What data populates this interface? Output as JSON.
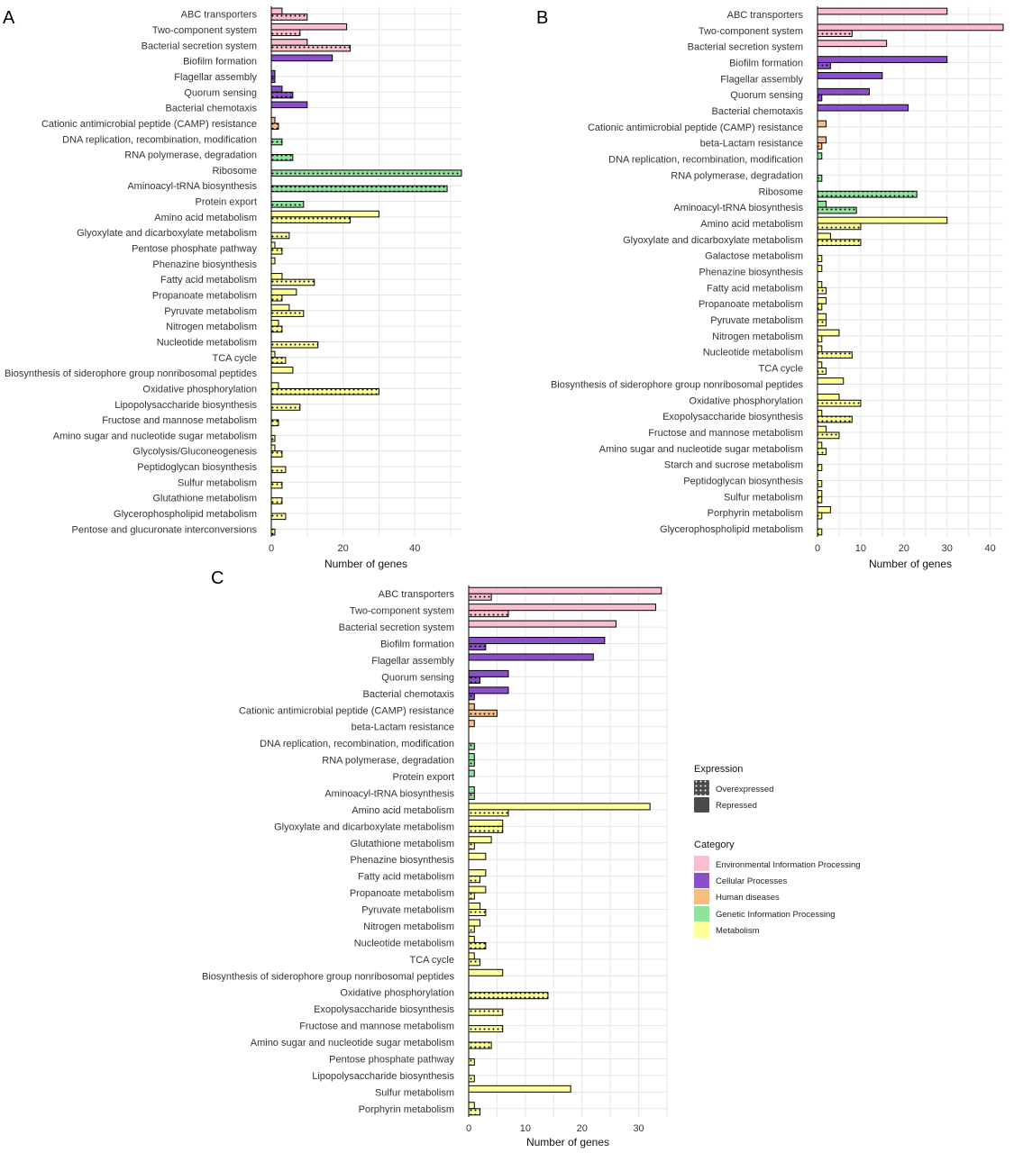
{
  "colors": {
    "Environmental Information Processing": "#f9bfcf",
    "Cellular Processes": "#8b4fc9",
    "Human diseases": "#f7bd7e",
    "Genetic Information Processing": "#8fe39a",
    "Metabolism": "#ffff99"
  },
  "legend": {
    "expression_title": "Expression",
    "expression_items": [
      "Overexpressed",
      "Repressed"
    ],
    "category_title": "Category",
    "category_items": [
      "Environmental Information Processing",
      "Cellular Processes",
      "Human diseases",
      "Genetic Information Processing",
      "Metabolism"
    ]
  },
  "chart_data": [
    {
      "panel": "A",
      "type": "bar",
      "orientation": "horizontal",
      "xlabel": "Number of genes",
      "xlim": [
        0,
        53
      ],
      "xticks": [
        0,
        20,
        40
      ],
      "grid": true,
      "series": [
        {
          "name": "Repressed"
        },
        {
          "name": "Overexpressed"
        }
      ],
      "categories": [
        {
          "name": "ABC transporters",
          "category": "Environmental Information Processing",
          "repressed": 3,
          "overexpressed": 10
        },
        {
          "name": "Two-component system",
          "category": "Environmental Information Processing",
          "repressed": 21,
          "overexpressed": 8
        },
        {
          "name": "Bacterial secretion system",
          "category": "Environmental Information Processing",
          "repressed": 10,
          "overexpressed": 22
        },
        {
          "name": "Biofilm formation",
          "category": "Cellular Processes",
          "repressed": 17,
          "overexpressed": 0
        },
        {
          "name": "Flagellar assembly",
          "category": "Cellular Processes",
          "repressed": 1,
          "overexpressed": 1
        },
        {
          "name": "Quorum sensing",
          "category": "Cellular Processes",
          "repressed": 3,
          "overexpressed": 6
        },
        {
          "name": "Bacterial chemotaxis",
          "category": "Cellular Processes",
          "repressed": 10,
          "overexpressed": 0
        },
        {
          "name": "Cationic antimicrobial peptide (CAMP) resistance",
          "category": "Human diseases",
          "repressed": 1,
          "overexpressed": 2
        },
        {
          "name": "DNA replication, recombination, modification",
          "category": "Genetic Information Processing",
          "repressed": 0,
          "overexpressed": 3
        },
        {
          "name": "RNA polymerase, degradation",
          "category": "Genetic Information Processing",
          "repressed": 0,
          "overexpressed": 6
        },
        {
          "name": "Ribosome",
          "category": "Genetic Information Processing",
          "repressed": 0,
          "overexpressed": 53
        },
        {
          "name": "Aminoacyl-tRNA biosynthesis",
          "category": "Genetic Information Processing",
          "repressed": 0,
          "overexpressed": 49
        },
        {
          "name": "Protein export",
          "category": "Genetic Information Processing",
          "repressed": 0,
          "overexpressed": 9
        },
        {
          "name": "Amino acid metabolism",
          "category": "Metabolism",
          "repressed": 30,
          "overexpressed": 22
        },
        {
          "name": "Glyoxylate and dicarboxylate metabolism",
          "category": "Metabolism",
          "repressed": 0,
          "overexpressed": 5
        },
        {
          "name": "Pentose phosphate pathway",
          "category": "Metabolism",
          "repressed": 1,
          "overexpressed": 3
        },
        {
          "name": "Phenazine biosynthesis",
          "category": "Metabolism",
          "repressed": 1,
          "overexpressed": 0
        },
        {
          "name": "Fatty acid metabolism",
          "category": "Metabolism",
          "repressed": 3,
          "overexpressed": 12
        },
        {
          "name": "Propanoate metabolism",
          "category": "Metabolism",
          "repressed": 7,
          "overexpressed": 3
        },
        {
          "name": "Pyruvate metabolism",
          "category": "Metabolism",
          "repressed": 5,
          "overexpressed": 9
        },
        {
          "name": "Nitrogen metabolism",
          "category": "Metabolism",
          "repressed": 2,
          "overexpressed": 3
        },
        {
          "name": "Nucleotide metabolism",
          "category": "Metabolism",
          "repressed": 0,
          "overexpressed": 13
        },
        {
          "name": "TCA cycle",
          "category": "Metabolism",
          "repressed": 1,
          "overexpressed": 4
        },
        {
          "name": "Biosynthesis of siderophore group nonribosomal peptides",
          "category": "Metabolism",
          "repressed": 6,
          "overexpressed": 0
        },
        {
          "name": "Oxidative phosphorylation",
          "category": "Metabolism",
          "repressed": 2,
          "overexpressed": 30
        },
        {
          "name": "Lipopolysaccharide biosynthesis",
          "category": "Metabolism",
          "repressed": 0,
          "overexpressed": 8
        },
        {
          "name": "Fructose and mannose metabolism",
          "category": "Metabolism",
          "repressed": 0,
          "overexpressed": 2
        },
        {
          "name": "Amino sugar and nucleotide sugar metabolism",
          "category": "Metabolism",
          "repressed": 0,
          "overexpressed": 1
        },
        {
          "name": "Glycolysis/Gluconeogenesis",
          "category": "Metabolism",
          "repressed": 1,
          "overexpressed": 3
        },
        {
          "name": "Peptidoglycan biosynthesis",
          "category": "Metabolism",
          "repressed": 0,
          "overexpressed": 4
        },
        {
          "name": "Sulfur metabolism",
          "category": "Metabolism",
          "repressed": 0,
          "overexpressed": 3
        },
        {
          "name": "Glutathione metabolism",
          "category": "Metabolism",
          "repressed": 0,
          "overexpressed": 3
        },
        {
          "name": "Glycerophospholipid metabolism",
          "category": "Metabolism",
          "repressed": 0,
          "overexpressed": 4
        },
        {
          "name": "Pentose and glucuronate interconversions",
          "category": "Metabolism",
          "repressed": 0,
          "overexpressed": 1
        }
      ]
    },
    {
      "panel": "B",
      "type": "bar",
      "orientation": "horizontal",
      "xlabel": "Number of genes",
      "xlim": [
        0,
        43
      ],
      "xticks": [
        0,
        10,
        20,
        30,
        40
      ],
      "grid": true,
      "series": [
        {
          "name": "Repressed"
        },
        {
          "name": "Overexpressed"
        }
      ],
      "categories": [
        {
          "name": "ABC transporters",
          "category": "Environmental Information Processing",
          "repressed": 30,
          "overexpressed": 0
        },
        {
          "name": "Two-component system",
          "category": "Environmental Information Processing",
          "repressed": 43,
          "overexpressed": 8
        },
        {
          "name": "Bacterial secretion system",
          "category": "Environmental Information Processing",
          "repressed": 16,
          "overexpressed": 0
        },
        {
          "name": "Biofilm formation",
          "category": "Cellular Processes",
          "repressed": 30,
          "overexpressed": 3
        },
        {
          "name": "Flagellar assembly",
          "category": "Cellular Processes",
          "repressed": 15,
          "overexpressed": 0
        },
        {
          "name": "Quorum sensing",
          "category": "Cellular Processes",
          "repressed": 12,
          "overexpressed": 1
        },
        {
          "name": "Bacterial chemotaxis",
          "category": "Cellular Processes",
          "repressed": 21,
          "overexpressed": 0
        },
        {
          "name": "Cationic antimicrobial peptide (CAMP) resistance",
          "category": "Human diseases",
          "repressed": 2,
          "overexpressed": 0
        },
        {
          "name": "beta-Lactam resistance",
          "category": "Human diseases",
          "repressed": 2,
          "overexpressed": 1
        },
        {
          "name": "DNA replication, recombination, modification",
          "category": "Genetic Information Processing",
          "repressed": 1,
          "overexpressed": 0
        },
        {
          "name": "RNA polymerase, degradation",
          "category": "Genetic Information Processing",
          "repressed": 0,
          "overexpressed": 1
        },
        {
          "name": "Ribosome",
          "category": "Genetic Information Processing",
          "repressed": 0,
          "overexpressed": 23
        },
        {
          "name": "Aminoacyl-tRNA biosynthesis",
          "category": "Genetic Information Processing",
          "repressed": 2,
          "overexpressed": 9
        },
        {
          "name": "Amino acid metabolism",
          "category": "Metabolism",
          "repressed": 30,
          "overexpressed": 10
        },
        {
          "name": "Glyoxylate and dicarboxylate metabolism",
          "category": "Metabolism",
          "repressed": 3,
          "overexpressed": 10
        },
        {
          "name": "Galactose metabolism",
          "category": "Metabolism",
          "repressed": 0,
          "overexpressed": 1
        },
        {
          "name": "Phenazine biosynthesis",
          "category": "Metabolism",
          "repressed": 1,
          "overexpressed": 0
        },
        {
          "name": "Fatty acid metabolism",
          "category": "Metabolism",
          "repressed": 1,
          "overexpressed": 2
        },
        {
          "name": "Propanoate metabolism",
          "category": "Metabolism",
          "repressed": 2,
          "overexpressed": 1
        },
        {
          "name": "Pyruvate metabolism",
          "category": "Metabolism",
          "repressed": 2,
          "overexpressed": 2
        },
        {
          "name": "Nitrogen metabolism",
          "category": "Metabolism",
          "repressed": 5,
          "overexpressed": 1
        },
        {
          "name": "Nucleotide metabolism",
          "category": "Metabolism",
          "repressed": 1,
          "overexpressed": 8
        },
        {
          "name": "TCA cycle",
          "category": "Metabolism",
          "repressed": 1,
          "overexpressed": 2
        },
        {
          "name": "Biosynthesis of siderophore group nonribosomal peptides",
          "category": "Metabolism",
          "repressed": 6,
          "overexpressed": 0
        },
        {
          "name": "Oxidative phosphorylation",
          "category": "Metabolism",
          "repressed": 5,
          "overexpressed": 10
        },
        {
          "name": "Exopolysaccharide biosynthesis",
          "category": "Metabolism",
          "repressed": 1,
          "overexpressed": 8
        },
        {
          "name": "Fructose and mannose metabolism",
          "category": "Metabolism",
          "repressed": 2,
          "overexpressed": 5
        },
        {
          "name": "Amino sugar and nucleotide sugar metabolism",
          "category": "Metabolism",
          "repressed": 1,
          "overexpressed": 2
        },
        {
          "name": "Starch and sucrose metabolism",
          "category": "Metabolism",
          "repressed": 0,
          "overexpressed": 1
        },
        {
          "name": "Peptidoglycan biosynthesis",
          "category": "Metabolism",
          "repressed": 0,
          "overexpressed": 1
        },
        {
          "name": "Sulfur metabolism",
          "category": "Metabolism",
          "repressed": 1,
          "overexpressed": 1
        },
        {
          "name": "Porphyrin metabolism",
          "category": "Metabolism",
          "repressed": 3,
          "overexpressed": 1
        },
        {
          "name": "Glycerophospholipid metabolism",
          "category": "Metabolism",
          "repressed": 0,
          "overexpressed": 1
        }
      ]
    },
    {
      "panel": "C",
      "type": "bar",
      "orientation": "horizontal",
      "xlabel": "Number of genes",
      "xlim": [
        0,
        35
      ],
      "xticks": [
        0,
        10,
        20,
        30
      ],
      "grid": true,
      "series": [
        {
          "name": "Repressed"
        },
        {
          "name": "Overexpressed"
        }
      ],
      "categories": [
        {
          "name": "ABC transporters",
          "category": "Environmental Information Processing",
          "repressed": 34,
          "overexpressed": 4
        },
        {
          "name": "Two-component system",
          "category": "Environmental Information Processing",
          "repressed": 33,
          "overexpressed": 7
        },
        {
          "name": "Bacterial secretion system",
          "category": "Environmental Information Processing",
          "repressed": 26,
          "overexpressed": 0
        },
        {
          "name": "Biofilm formation",
          "category": "Cellular Processes",
          "repressed": 24,
          "overexpressed": 3
        },
        {
          "name": "Flagellar assembly",
          "category": "Cellular Processes",
          "repressed": 22,
          "overexpressed": 0
        },
        {
          "name": "Quorum sensing",
          "category": "Cellular Processes",
          "repressed": 7,
          "overexpressed": 2
        },
        {
          "name": "Bacterial chemotaxis",
          "category": "Cellular Processes",
          "repressed": 7,
          "overexpressed": 1
        },
        {
          "name": "Cationic antimicrobial peptide (CAMP) resistance",
          "category": "Human diseases",
          "repressed": 1,
          "overexpressed": 5
        },
        {
          "name": "beta-Lactam resistance",
          "category": "Human diseases",
          "repressed": 1,
          "overexpressed": 0
        },
        {
          "name": "DNA replication, recombination, modification",
          "category": "Genetic Information Processing",
          "repressed": 0,
          "overexpressed": 1
        },
        {
          "name": "RNA polymerase, degradation",
          "category": "Genetic Information Processing",
          "repressed": 1,
          "overexpressed": 1
        },
        {
          "name": "Protein export",
          "category": "Genetic Information Processing",
          "repressed": 1,
          "overexpressed": 0
        },
        {
          "name": "Aminoacyl-tRNA biosynthesis",
          "category": "Genetic Information Processing",
          "repressed": 1,
          "overexpressed": 1
        },
        {
          "name": "Amino acid metabolism",
          "category": "Metabolism",
          "repressed": 32,
          "overexpressed": 7
        },
        {
          "name": "Glyoxylate and dicarboxylate metabolism",
          "category": "Metabolism",
          "repressed": 6,
          "overexpressed": 6
        },
        {
          "name": "Glutathione metabolism",
          "category": "Metabolism",
          "repressed": 4,
          "overexpressed": 1
        },
        {
          "name": "Phenazine biosynthesis",
          "category": "Metabolism",
          "repressed": 3,
          "overexpressed": 0
        },
        {
          "name": "Fatty acid metabolism",
          "category": "Metabolism",
          "repressed": 3,
          "overexpressed": 2
        },
        {
          "name": "Propanoate metabolism",
          "category": "Metabolism",
          "repressed": 3,
          "overexpressed": 1
        },
        {
          "name": "Pyruvate metabolism",
          "category": "Metabolism",
          "repressed": 2,
          "overexpressed": 3
        },
        {
          "name": "Nitrogen metabolism",
          "category": "Metabolism",
          "repressed": 2,
          "overexpressed": 1
        },
        {
          "name": "Nucleotide metabolism",
          "category": "Metabolism",
          "repressed": 1,
          "overexpressed": 3
        },
        {
          "name": "TCA cycle",
          "category": "Metabolism",
          "repressed": 1,
          "overexpressed": 2
        },
        {
          "name": "Biosynthesis of siderophore group nonribosomal peptides",
          "category": "Metabolism",
          "repressed": 6,
          "overexpressed": 0
        },
        {
          "name": "Oxidative phosphorylation",
          "category": "Metabolism",
          "repressed": 0,
          "overexpressed": 14
        },
        {
          "name": "Exopolysaccharide biosynthesis",
          "category": "Metabolism",
          "repressed": 0,
          "overexpressed": 6
        },
        {
          "name": "Fructose and mannose metabolism",
          "category": "Metabolism",
          "repressed": 0,
          "overexpressed": 6
        },
        {
          "name": "Amino sugar and nucleotide sugar metabolism",
          "category": "Metabolism",
          "repressed": 0,
          "overexpressed": 4
        },
        {
          "name": "Pentose phosphate pathway",
          "category": "Metabolism",
          "repressed": 0,
          "overexpressed": 1
        },
        {
          "name": "Lipopolysaccharide biosynthesis",
          "category": "Metabolism",
          "repressed": 0,
          "overexpressed": 1
        },
        {
          "name": "Sulfur metabolism",
          "category": "Metabolism",
          "repressed": 18,
          "overexpressed": 0
        },
        {
          "name": "Porphyrin metabolism",
          "category": "Metabolism",
          "repressed": 1,
          "overexpressed": 2
        }
      ]
    }
  ]
}
